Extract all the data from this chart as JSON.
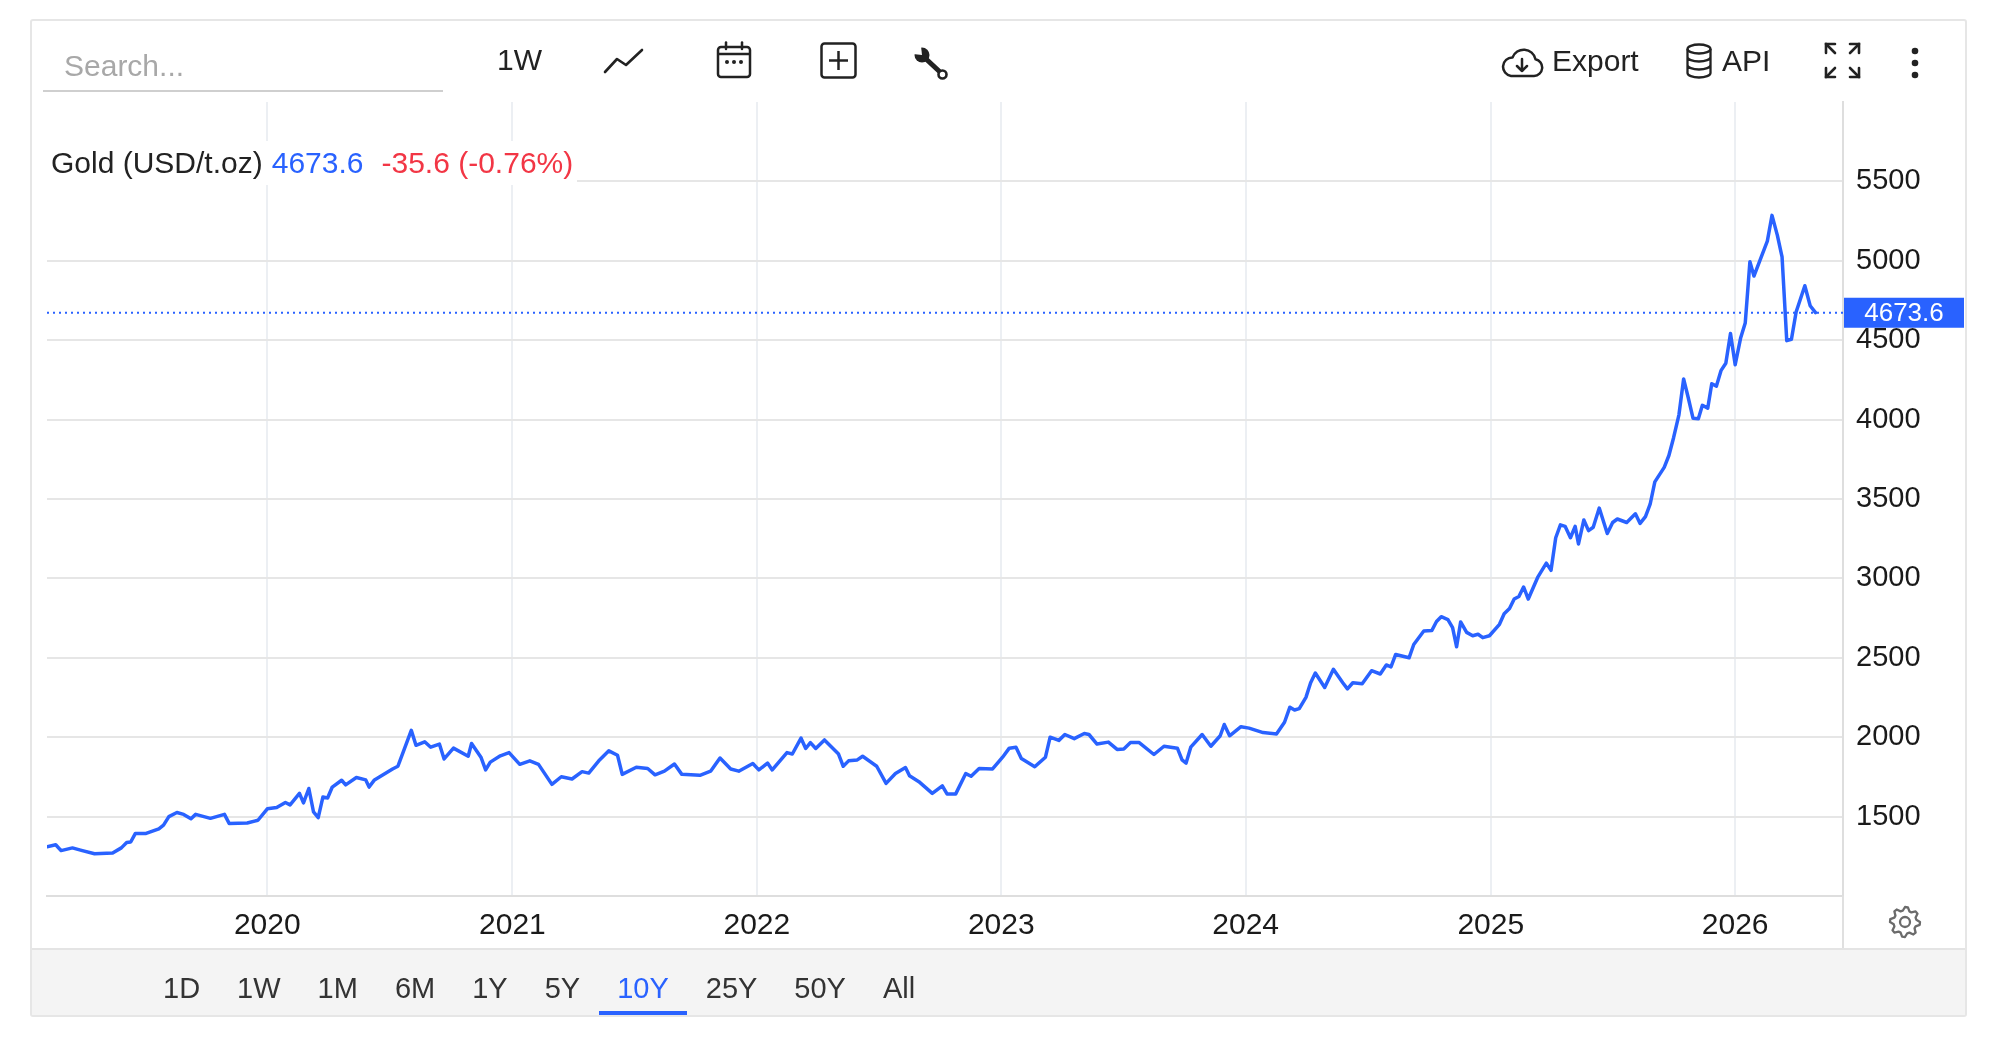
{
  "chart_data": {
    "type": "line",
    "title": "Gold (USD/t.oz)",
    "x": [
      "2019-02-06",
      "2019-02-19",
      "2019-02-27",
      "2019-03-16",
      "2019-03-28",
      "2019-04-18",
      "2019-05-15",
      "2019-05-28",
      "2019-06-05",
      "2019-06-11",
      "2019-06-18",
      "2019-07-04",
      "2019-07-23",
      "2019-07-30",
      "2019-08-07",
      "2019-08-19",
      "2019-08-29",
      "2019-09-09",
      "2019-09-16",
      "2019-10-08",
      "2019-10-29",
      "2019-11-05",
      "2019-12-02",
      "2019-12-18",
      "2020-01-01",
      "2020-01-15",
      "2020-01-28",
      "2020-02-04",
      "2020-02-18",
      "2020-02-24",
      "2020-03-03",
      "2020-03-10",
      "2020-03-17",
      "2020-03-24",
      "2020-03-31",
      "2020-04-07",
      "2020-04-21",
      "2020-04-27",
      "2020-05-13",
      "2020-05-27",
      "2020-06-01",
      "2020-06-09",
      "2020-07-06",
      "2020-07-14",
      "2020-08-03",
      "2020-08-10",
      "2020-08-23",
      "2020-09-01",
      "2020-09-14",
      "2020-09-21",
      "2020-10-05",
      "2020-10-27",
      "2020-11-01",
      "2020-11-15",
      "2020-11-22",
      "2020-11-29",
      "2020-12-14",
      "2020-12-27",
      "2021-01-12",
      "2021-01-27",
      "2021-02-09",
      "2021-03-01",
      "2021-03-15",
      "2021-03-31",
      "2021-04-15",
      "2021-04-25",
      "2021-05-10",
      "2021-05-25",
      "2021-06-07",
      "2021-06-14",
      "2021-07-05",
      "2021-07-22",
      "2021-08-02",
      "2021-08-16",
      "2021-08-31",
      "2021-09-11",
      "2021-10-08",
      "2021-10-24",
      "2021-11-07",
      "2021-11-23",
      "2021-12-05",
      "2021-12-26",
      "2022-01-04",
      "2022-01-17",
      "2022-01-24",
      "2022-02-15",
      "2022-02-23",
      "2022-03-08",
      "2022-03-15",
      "2022-03-22",
      "2022-03-30",
      "2022-04-12",
      "2022-05-03",
      "2022-05-10",
      "2022-05-18",
      "2022-05-31",
      "2022-06-08",
      "2022-06-29",
      "2022-07-13",
      "2022-07-27",
      "2022-08-11",
      "2022-08-17",
      "2022-08-31",
      "2022-09-20",
      "2022-10-05",
      "2022-10-12",
      "2022-10-25",
      "2022-11-09",
      "2022-11-17",
      "2022-11-29",
      "2022-12-19",
      "2023-01-03",
      "2023-01-13",
      "2023-01-23",
      "2023-01-31",
      "2023-02-20",
      "2023-03-08",
      "2023-03-15",
      "2023-03-28",
      "2023-04-06",
      "2023-04-20",
      "2023-05-05",
      "2023-05-12",
      "2023-05-24",
      "2023-06-10",
      "2023-06-23",
      "2023-07-03",
      "2023-07-13",
      "2023-07-26",
      "2023-08-17",
      "2023-09-01",
      "2023-09-21",
      "2023-09-28",
      "2023-10-04",
      "2023-10-11",
      "2023-10-28",
      "2023-11-10",
      "2023-11-24",
      "2023-11-30",
      "2023-12-08",
      "2023-12-25",
      "2024-01-06",
      "2024-01-27",
      "2024-02-16",
      "2024-02-28",
      "2024-03-07",
      "2024-03-14",
      "2024-03-21",
      "2024-03-31",
      "2024-04-07",
      "2024-04-14",
      "2024-04-28",
      "2024-05-11",
      "2024-05-25",
      "2024-06-01",
      "2024-06-09",
      "2024-06-23",
      "2024-07-07",
      "2024-07-20",
      "2024-07-29",
      "2024-08-05",
      "2024-08-12",
      "2024-09-01",
      "2024-09-08",
      "2024-09-23",
      "2024-10-05",
      "2024-10-12",
      "2024-10-19",
      "2024-10-29",
      "2024-11-05",
      "2024-11-11",
      "2024-11-17",
      "2024-11-26",
      "2024-12-05",
      "2024-12-13",
      "2024-12-20",
      "2024-12-30",
      "2025-01-14",
      "2025-01-21",
      "2025-01-29",
      "2025-02-05",
      "2025-02-12",
      "2025-02-19",
      "2025-02-26",
      "2025-03-12",
      "2025-03-25",
      "2025-04-01",
      "2025-04-08",
      "2025-04-15",
      "2025-04-22",
      "2025-04-30",
      "2025-05-07",
      "2025-05-12",
      "2025-05-20",
      "2025-05-27",
      "2025-06-03",
      "2025-06-12",
      "2025-06-24",
      "2025-07-02",
      "2025-07-09",
      "2025-07-23",
      "2025-08-05",
      "2025-08-12",
      "2025-08-20",
      "2025-08-27",
      "2025-09-03",
      "2025-09-17",
      "2025-09-24",
      "2025-10-01",
      "2025-10-09",
      "2025-10-16",
      "2025-10-23",
      "2025-10-30",
      "2025-11-07",
      "2025-11-13",
      "2025-11-21",
      "2025-11-27",
      "2025-12-04",
      "2025-12-11",
      "2025-12-18",
      "2025-12-25",
      "2026-01-01",
      "2026-01-09",
      "2026-01-16",
      "2026-01-23",
      "2026-01-29",
      "2026-02-18",
      "2026-02-25",
      "2026-03-05",
      "2026-03-12",
      "2026-03-19",
      "2026-03-26",
      "2026-04-02",
      "2026-04-15",
      "2026-04-23",
      "2026-05-01"
    ],
    "series": [
      {
        "color": "#2962ff",
        "values": [
          1310,
          1323,
          1286,
          1303,
          1289,
          1266,
          1271,
          1303,
          1337,
          1340,
          1394,
          1394,
          1423,
          1446,
          1500,
          1526,
          1514,
          1486,
          1514,
          1489,
          1514,
          1457,
          1460,
          1477,
          1549,
          1557,
          1589,
          1574,
          1646,
          1586,
          1677,
          1529,
          1494,
          1623,
          1617,
          1686,
          1729,
          1700,
          1746,
          1731,
          1686,
          1731,
          1800,
          1817,
          2043,
          1949,
          1971,
          1937,
          1957,
          1863,
          1931,
          1880,
          1960,
          1874,
          1794,
          1843,
          1883,
          1903,
          1829,
          1851,
          1829,
          1703,
          1751,
          1737,
          1783,
          1774,
          1851,
          1914,
          1886,
          1766,
          1811,
          1803,
          1763,
          1786,
          1831,
          1766,
          1760,
          1786,
          1869,
          1800,
          1786,
          1834,
          1794,
          1837,
          1794,
          1903,
          1894,
          1994,
          1929,
          1966,
          1929,
          1983,
          1894,
          1817,
          1851,
          1857,
          1880,
          1817,
          1709,
          1771,
          1809,
          1757,
          1720,
          1646,
          1694,
          1643,
          1643,
          1771,
          1754,
          1803,
          1800,
          1874,
          1931,
          1937,
          1866,
          1814,
          1874,
          2000,
          1980,
          2017,
          1991,
          2023,
          2017,
          1957,
          1969,
          1923,
          1926,
          1966,
          1966,
          1891,
          1943,
          1931,
          1857,
          1837,
          1937,
          2017,
          1943,
          2009,
          2080,
          2009,
          2066,
          2057,
          2029,
          2020,
          2094,
          2189,
          2171,
          2180,
          2251,
          2343,
          2404,
          2313,
          2428,
          2343,
          2304,
          2343,
          2337,
          2419,
          2398,
          2455,
          2443,
          2521,
          2500,
          2584,
          2669,
          2672,
          2729,
          2759,
          2741,
          2690,
          2569,
          2726,
          2660,
          2639,
          2648,
          2627,
          2639,
          2711,
          2777,
          2810,
          2870,
          2886,
          2946,
          2870,
          3006,
          3096,
          3051,
          3256,
          3337,
          3328,
          3256,
          3328,
          3217,
          3368,
          3301,
          3322,
          3443,
          3283,
          3352,
          3374,
          3352,
          3407,
          3346,
          3389,
          3467,
          3608,
          3699,
          3774,
          3886,
          4030,
          4256,
          4136,
          4009,
          4006,
          4090,
          4072,
          4226,
          4211,
          4310,
          4355,
          4542,
          4346,
          4512,
          4608,
          4994,
          4904,
          5124,
          5286,
          5160,
          5024,
          4497,
          4506,
          4678,
          4843,
          4717,
          4673.6
        ]
      }
    ],
    "xlim": [
      "2019-02-06",
      "2026-06-11"
    ],
    "xticks": [
      "2020",
      "2021",
      "2022",
      "2023",
      "2024",
      "2025",
      "2026"
    ],
    "ylim": [
      1000,
      6000
    ],
    "yticks": [
      1500,
      2000,
      2500,
      3000,
      3500,
      4000,
      4500,
      5000,
      5500
    ],
    "grid": true,
    "marker": "none",
    "line_style": "solid",
    "ref_lines": [
      {
        "axis": "y",
        "value": 4673.6,
        "label": "4673.6",
        "color": "#2962ff",
        "line_style": "dotted"
      }
    ],
    "annotations": [
      "4673.6",
      "-35.6 (-0.76%)",
      "Search...",
      "1W",
      "Export",
      "API",
      "1D",
      "1W",
      "1M",
      "6M",
      "1Y",
      "5Y",
      "10Y",
      "25Y",
      "50Y",
      "All"
    ]
  }
}
